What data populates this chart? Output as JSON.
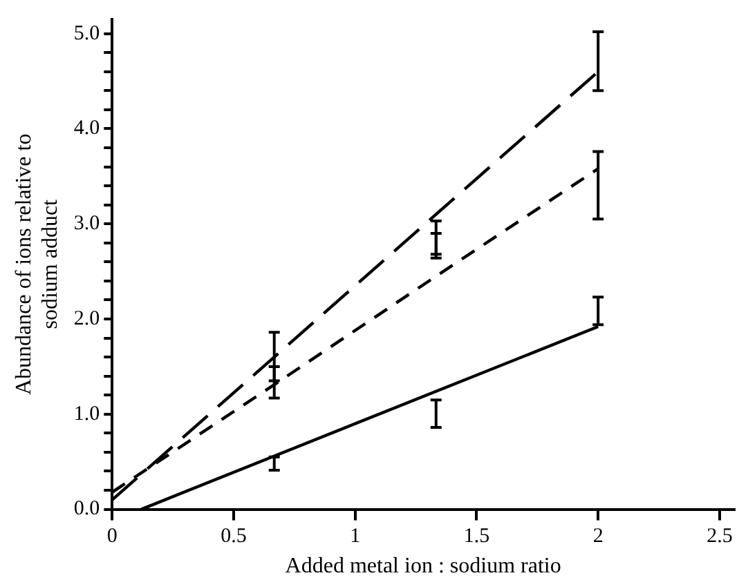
{
  "chart_data": {
    "type": "line",
    "xlabel": "Added metal ion : sodium ratio",
    "ylabel": "Abundance of ions relative to sodium adduct",
    "xlim": [
      0,
      2.56
    ],
    "ylim": [
      0,
      5.15
    ],
    "xticks": [
      0,
      0.5,
      1,
      1.5,
      2,
      2.5
    ],
    "yticks": [
      {
        "value": 0,
        "label": "0.0"
      },
      {
        "value": 0.2,
        "label": null
      },
      {
        "value": 0.4,
        "label": null
      },
      {
        "value": 0.6,
        "label": null
      },
      {
        "value": 0.8,
        "label": null
      },
      {
        "value": 1,
        "label": "1.0"
      },
      {
        "value": 1.2,
        "label": null
      },
      {
        "value": 1.4,
        "label": null
      },
      {
        "value": 1.6,
        "label": null
      },
      {
        "value": 1.8,
        "label": null
      },
      {
        "value": 2,
        "label": "2.0"
      },
      {
        "value": 2.2,
        "label": null
      },
      {
        "value": 2.4,
        "label": null
      },
      {
        "value": 2.6,
        "label": null
      },
      {
        "value": 2.8,
        "label": null
      },
      {
        "value": 3,
        "label": "3.0"
      },
      {
        "value": 3.2,
        "label": null
      },
      {
        "value": 3.4,
        "label": null
      },
      {
        "value": 3.6,
        "label": null
      },
      {
        "value": 3.8,
        "label": null
      },
      {
        "value": 4,
        "label": "4.0"
      },
      {
        "value": 4.2,
        "label": null
      },
      {
        "value": 4.4,
        "label": null
      },
      {
        "value": 4.6,
        "label": null
      },
      {
        "value": 4.8,
        "label": null
      },
      {
        "value": 5,
        "label": "5.0"
      }
    ],
    "grid": false,
    "legend": false,
    "marker": "none",
    "series": [
      {
        "color": "#000000",
        "line_style": "dashed",
        "x": [
          0,
          0.667,
          1.333,
          2
        ],
        "values": [
          0.1,
          1.6,
          3.1,
          4.6
        ],
        "errors": [
          null,
          [
            1.35,
            1.86
          ],
          [
            2.68,
            3.03
          ],
          [
            4.4,
            5.02
          ]
        ]
      },
      {
        "color": "#000000",
        "line_style": "dashed",
        "x": [
          0,
          0.667,
          1.333,
          2
        ],
        "values": [
          0.18,
          1.31,
          2.45,
          3.58
        ],
        "errors": [
          null,
          [
            1.17,
            1.5
          ],
          [
            2.64,
            2.9
          ],
          [
            3.05,
            3.76
          ]
        ]
      },
      {
        "color": "#000000",
        "line_style": "solid",
        "x": [
          0.12,
          0.667,
          1.333,
          2
        ],
        "values": [
          0,
          0.56,
          1.24,
          1.92
        ],
        "errors": [
          null,
          [
            0.41,
            0.55
          ],
          [
            0.86,
            1.15
          ],
          [
            1.94,
            2.23
          ]
        ]
      }
    ]
  }
}
